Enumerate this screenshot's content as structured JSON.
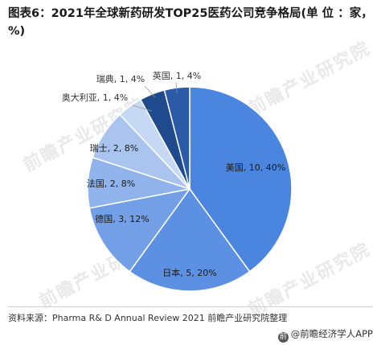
{
  "title": "图表6：2021年全球新药研发TOP25医药公司竞争格局(单 位 ：家，%)",
  "watermark": "前瞻产业研究院",
  "source": "资料来源：Pharma R& D Annual Review 2021 前瞻产业研究院整理",
  "brand": "@前瞻经济学人APP",
  "chart_data": {
    "type": "pie",
    "title": "图表6：2021年全球新药研发TOP25医药公司竞争格局(单 位 ：家，%)",
    "unit": "家，%",
    "slices": [
      {
        "name": "美国",
        "value": 10,
        "percent": 40,
        "label": "美国, 10, 40%",
        "color": "#4a86e0"
      },
      {
        "name": "日本",
        "value": 5,
        "percent": 20,
        "label": "日本, 5, 20%",
        "color": "#5c90e2"
      },
      {
        "name": "德国",
        "value": 3,
        "percent": 12,
        "label": "德国, 3, 12%",
        "color": "#729fe5"
      },
      {
        "name": "法国",
        "value": 2,
        "percent": 8,
        "label": "法国, 2, 8%",
        "color": "#8fb3ea"
      },
      {
        "name": "瑞士",
        "value": 2,
        "percent": 8,
        "label": "瑞士, 2, 8%",
        "color": "#a9c5ef"
      },
      {
        "name": "奥大利亚",
        "value": 1,
        "percent": 4,
        "label": "奥大利亚, 1, 4%",
        "color": "#c5d8f4"
      },
      {
        "name": "瑞典",
        "value": 1,
        "percent": 4,
        "label": "瑞典, 1, 4%",
        "color": "#1f4b8e"
      },
      {
        "name": "英国",
        "value": 1,
        "percent": 4,
        "label": "英国, 1, 4%",
        "color": "#2a5aa8"
      }
    ],
    "legend": "none"
  }
}
